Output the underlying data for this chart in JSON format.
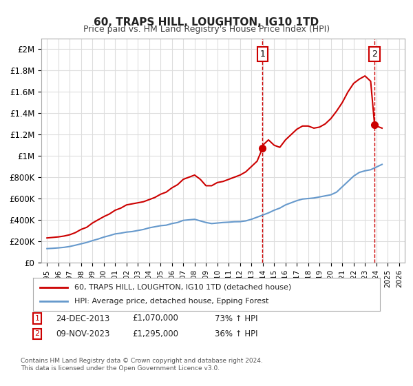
{
  "title": "60, TRAPS HILL, LOUGHTON, IG10 1TD",
  "subtitle": "Price paid vs. HM Land Registry's House Price Index (HPI)",
  "xlabel": "",
  "ylabel": "",
  "background_color": "#ffffff",
  "legend_entry1": "60, TRAPS HILL, LOUGHTON, IG10 1TD (detached house)",
  "legend_entry2": "HPI: Average price, detached house, Epping Forest",
  "annotation1_label": "1",
  "annotation1_date": "24-DEC-2013",
  "annotation1_price": "£1,070,000",
  "annotation1_hpi": "73% ↑ HPI",
  "annotation2_label": "2",
  "annotation2_date": "09-NOV-2023",
  "annotation2_price": "£1,295,000",
  "annotation2_hpi": "36% ↑ HPI",
  "footnote1": "Contains HM Land Registry data © Crown copyright and database right 2024.",
  "footnote2": "This data is licensed under the Open Government Licence v3.0.",
  "red_line_color": "#cc0000",
  "blue_line_color": "#6699cc",
  "vline_color": "#cc0000",
  "grid_color": "#dddddd",
  "years": [
    1995,
    1996,
    1997,
    1998,
    1999,
    2000,
    2001,
    2002,
    2003,
    2004,
    2005,
    2006,
    2007,
    2008,
    2009,
    2010,
    2011,
    2012,
    2013,
    2014,
    2015,
    2016,
    2017,
    2018,
    2019,
    2020,
    2021,
    2022,
    2023,
    2024,
    2025,
    2026
  ],
  "red_x": [
    1995.0,
    1995.5,
    1996.0,
    1996.5,
    1997.0,
    1997.5,
    1998.0,
    1998.5,
    1999.0,
    1999.5,
    2000.0,
    2000.5,
    2001.0,
    2001.5,
    2002.0,
    2002.5,
    2003.0,
    2003.5,
    2004.0,
    2004.5,
    2005.0,
    2005.5,
    2006.0,
    2006.5,
    2007.0,
    2007.5,
    2008.0,
    2008.5,
    2009.0,
    2009.5,
    2010.0,
    2010.5,
    2011.0,
    2011.5,
    2012.0,
    2012.5,
    2013.0,
    2013.5,
    2013.97,
    2014.0,
    2014.5,
    2015.0,
    2015.5,
    2016.0,
    2016.5,
    2017.0,
    2017.5,
    2018.0,
    2018.5,
    2019.0,
    2019.5,
    2020.0,
    2020.5,
    2021.0,
    2021.5,
    2022.0,
    2022.5,
    2023.0,
    2023.5,
    2023.84,
    2024.0,
    2024.5
  ],
  "red_y": [
    230000,
    235000,
    240000,
    248000,
    260000,
    280000,
    310000,
    330000,
    370000,
    400000,
    430000,
    455000,
    490000,
    510000,
    540000,
    550000,
    560000,
    570000,
    590000,
    610000,
    640000,
    660000,
    700000,
    730000,
    780000,
    800000,
    820000,
    780000,
    720000,
    720000,
    750000,
    760000,
    780000,
    800000,
    820000,
    850000,
    900000,
    950000,
    1070000,
    1100000,
    1150000,
    1100000,
    1080000,
    1150000,
    1200000,
    1250000,
    1280000,
    1280000,
    1260000,
    1270000,
    1300000,
    1350000,
    1420000,
    1500000,
    1600000,
    1680000,
    1720000,
    1750000,
    1700000,
    1295000,
    1280000,
    1260000
  ],
  "blue_x": [
    1995.0,
    1995.5,
    1996.0,
    1996.5,
    1997.0,
    1997.5,
    1998.0,
    1998.5,
    1999.0,
    1999.5,
    2000.0,
    2000.5,
    2001.0,
    2001.5,
    2002.0,
    2002.5,
    2003.0,
    2003.5,
    2004.0,
    2004.5,
    2005.0,
    2005.5,
    2006.0,
    2006.5,
    2007.0,
    2007.5,
    2008.0,
    2008.5,
    2009.0,
    2009.5,
    2010.0,
    2010.5,
    2011.0,
    2011.5,
    2012.0,
    2012.5,
    2013.0,
    2013.5,
    2014.0,
    2014.5,
    2015.0,
    2015.5,
    2016.0,
    2016.5,
    2017.0,
    2017.5,
    2018.0,
    2018.5,
    2019.0,
    2019.5,
    2020.0,
    2020.5,
    2021.0,
    2021.5,
    2022.0,
    2022.5,
    2023.0,
    2023.5,
    2024.0,
    2024.5
  ],
  "blue_y": [
    130000,
    133000,
    137000,
    142000,
    150000,
    162000,
    175000,
    188000,
    205000,
    220000,
    238000,
    252000,
    268000,
    275000,
    285000,
    290000,
    300000,
    310000,
    325000,
    335000,
    345000,
    350000,
    365000,
    375000,
    395000,
    400000,
    405000,
    390000,
    375000,
    365000,
    370000,
    375000,
    378000,
    382000,
    383000,
    390000,
    405000,
    425000,
    445000,
    465000,
    490000,
    510000,
    540000,
    560000,
    580000,
    595000,
    600000,
    605000,
    615000,
    625000,
    635000,
    660000,
    710000,
    760000,
    810000,
    845000,
    860000,
    870000,
    895000,
    920000
  ],
  "ylim": [
    0,
    2100000
  ],
  "xlim_left": 1994.5,
  "xlim_right": 2026.5,
  "vline1_x": 2013.97,
  "vline2_x": 2023.84,
  "marker1_x": 2013.97,
  "marker1_y": 1070000,
  "marker2_x": 2023.84,
  "marker2_y": 1295000
}
